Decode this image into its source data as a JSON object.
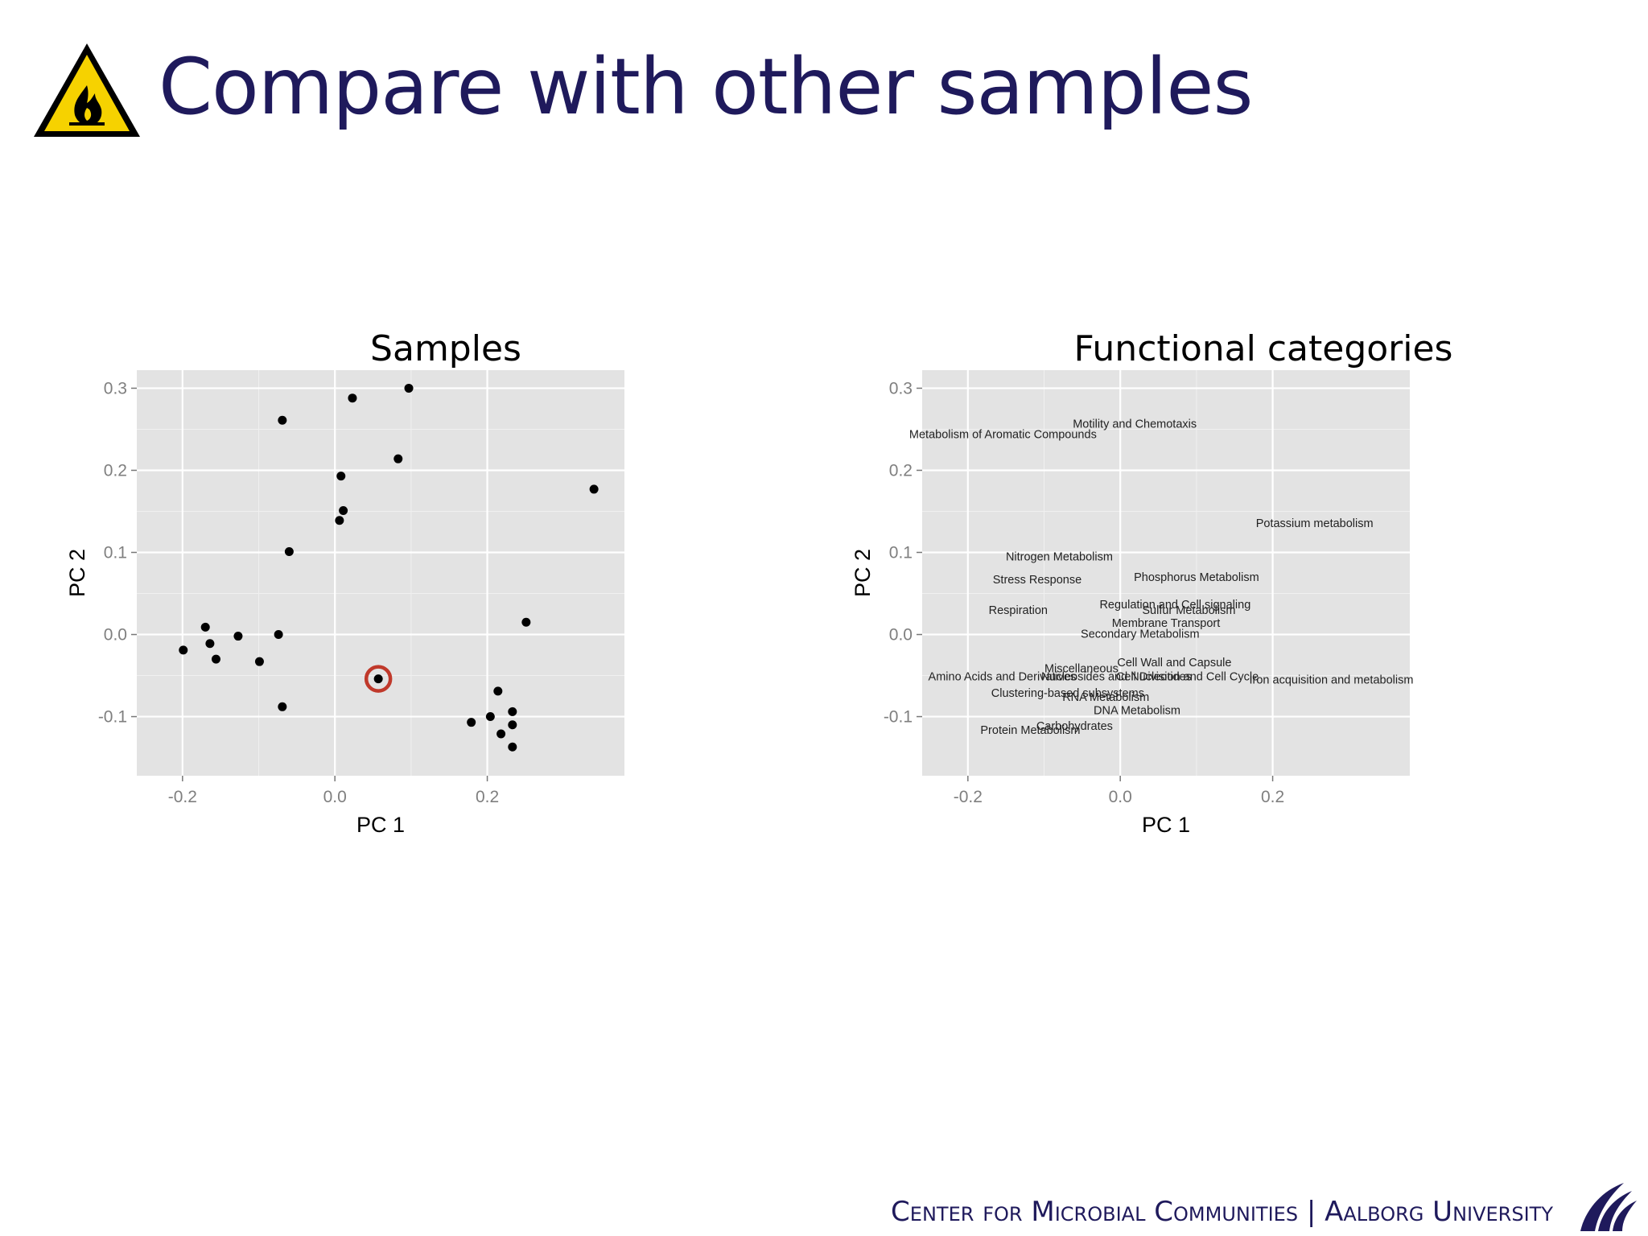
{
  "slide": {
    "title": "Compare with other samples",
    "footer": "Center for Microbial Communities | Aalborg University"
  },
  "icons": {
    "warning": "flammable-warning-icon",
    "logo": "aalborg-university-logo-icon"
  },
  "colors": {
    "title": "#1f1a5c",
    "panel_bg": "#e3e3e3",
    "highlight": "#c0392b",
    "point": "#000000"
  },
  "chart_data": [
    {
      "type": "scatter",
      "title": "Samples",
      "xlabel": "PC 1",
      "ylabel": "PC 2",
      "xlim": [
        -0.26,
        0.38
      ],
      "ylim": [
        -0.172,
        0.322
      ],
      "xticks": [
        -0.2,
        0.0,
        0.2
      ],
      "xtick_labels": [
        "-0.2",
        "0.0",
        "0.2"
      ],
      "yticks": [
        -0.1,
        0.0,
        0.1,
        0.2,
        0.3
      ],
      "ytick_labels": [
        "-0.1",
        "0.0",
        "0.1",
        "0.2",
        "0.3"
      ],
      "grid": true,
      "points": [
        {
          "x": -0.199,
          "y": -0.019
        },
        {
          "x": -0.17,
          "y": 0.009
        },
        {
          "x": -0.164,
          "y": -0.011
        },
        {
          "x": -0.156,
          "y": -0.03
        },
        {
          "x": -0.127,
          "y": -0.002
        },
        {
          "x": -0.099,
          "y": -0.033
        },
        {
          "x": -0.074,
          "y": 0.0
        },
        {
          "x": -0.069,
          "y": 0.261
        },
        {
          "x": -0.069,
          "y": -0.088
        },
        {
          "x": -0.06,
          "y": 0.101
        },
        {
          "x": 0.006,
          "y": 0.139
        },
        {
          "x": 0.008,
          "y": 0.193
        },
        {
          "x": 0.011,
          "y": 0.151
        },
        {
          "x": 0.023,
          "y": 0.288
        },
        {
          "x": 0.083,
          "y": 0.214
        },
        {
          "x": 0.097,
          "y": 0.3
        },
        {
          "x": 0.179,
          "y": -0.107
        },
        {
          "x": 0.204,
          "y": -0.1
        },
        {
          "x": 0.214,
          "y": -0.069
        },
        {
          "x": 0.218,
          "y": -0.121
        },
        {
          "x": 0.233,
          "y": -0.094
        },
        {
          "x": 0.233,
          "y": -0.11
        },
        {
          "x": 0.233,
          "y": -0.137
        },
        {
          "x": 0.251,
          "y": 0.015
        },
        {
          "x": 0.34,
          "y": 0.177
        }
      ],
      "highlighted_point": {
        "x": 0.057,
        "y": -0.054
      }
    },
    {
      "type": "scatter",
      "title": "Functional categories",
      "xlabel": "PC 1",
      "ylabel": "PC 2",
      "xlim": [
        -0.26,
        0.38
      ],
      "ylim": [
        -0.172,
        0.322
      ],
      "xticks": [
        -0.2,
        0.0,
        0.2
      ],
      "xtick_labels": [
        "-0.2",
        "0.0",
        "0.2"
      ],
      "yticks": [
        -0.1,
        0.0,
        0.1,
        0.2,
        0.3
      ],
      "ytick_labels": [
        "-0.1",
        "0.0",
        "0.1",
        "0.2",
        "0.3"
      ],
      "grid": true,
      "labels": [
        {
          "text": "Motility and Chemotaxis",
          "x": 0.019,
          "y": 0.257
        },
        {
          "text": "Metabolism of Aromatic Compounds",
          "x": -0.154,
          "y": 0.244
        },
        {
          "text": "Potassium metabolism",
          "x": 0.255,
          "y": 0.136
        },
        {
          "text": "Nitrogen Metabolism",
          "x": -0.08,
          "y": 0.095
        },
        {
          "text": "Stress Response",
          "x": -0.109,
          "y": 0.067
        },
        {
          "text": "Phosphorus Metabolism",
          "x": 0.1,
          "y": 0.07
        },
        {
          "text": "Regulation and Cell signaling",
          "x": 0.072,
          "y": 0.037
        },
        {
          "text": "Sulfur Metabolism",
          "x": 0.09,
          "y": 0.03
        },
        {
          "text": "Respiration",
          "x": -0.134,
          "y": 0.03
        },
        {
          "text": "Membrane Transport",
          "x": 0.06,
          "y": 0.014
        },
        {
          "text": "Secondary Metabolism",
          "x": 0.026,
          "y": 0.001
        },
        {
          "text": "Cell Wall and Capsule",
          "x": 0.071,
          "y": -0.034
        },
        {
          "text": "Miscellaneous",
          "x": -0.051,
          "y": -0.041
        },
        {
          "text": "Amino Acids and Derivatives",
          "x": -0.155,
          "y": -0.051
        },
        {
          "text": "Nucleosides and Nucleotides",
          "x": -0.005,
          "y": -0.051
        },
        {
          "text": "Cell Division and Cell Cycle",
          "x": 0.088,
          "y": -0.051
        },
        {
          "text": "Iron acquisition and metabolism",
          "x": 0.277,
          "y": -0.055
        },
        {
          "text": "Clustering-based subsystems",
          "x": -0.069,
          "y": -0.071
        },
        {
          "text": "RNA Metabolism",
          "x": -0.019,
          "y": -0.076
        },
        {
          "text": "DNA Metabolism",
          "x": 0.022,
          "y": -0.092
        },
        {
          "text": "Carbohydrates",
          "x": -0.06,
          "y": -0.111
        },
        {
          "text": "Protein Metabolism",
          "x": -0.118,
          "y": -0.116
        }
      ]
    }
  ]
}
